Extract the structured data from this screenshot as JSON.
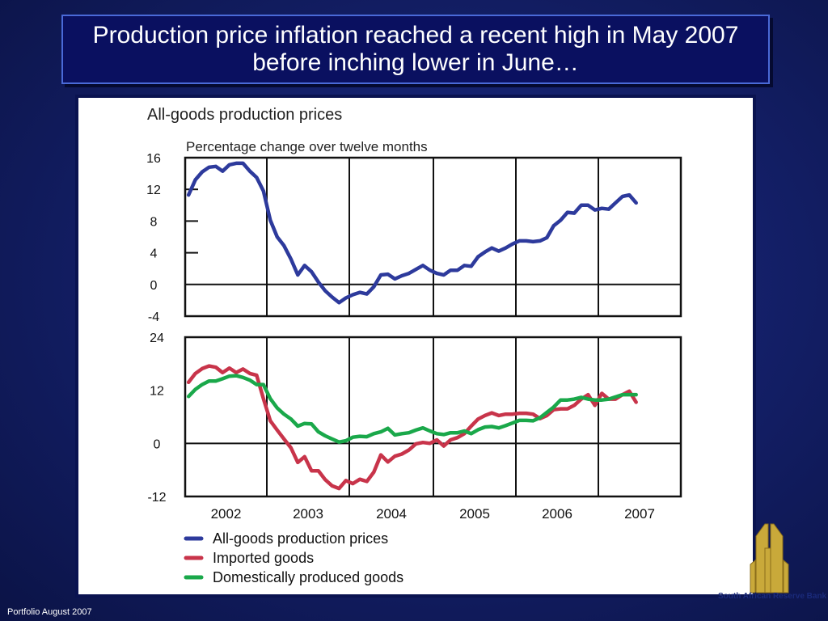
{
  "slide": {
    "title_line1": "Production price inflation reached a recent high in May 2007",
    "title_line2": "before inching lower in June…",
    "footer": "Portfolio August 2007",
    "bank_name": "South African Reserve Bank"
  },
  "chart_data": {
    "type": "line",
    "title": "All-goods production prices",
    "subtitle": "Percentage change over twelve months",
    "x_tick_labels": [
      "2002",
      "2003",
      "2004",
      "2005",
      "2006",
      "2007"
    ],
    "colors": {
      "all_goods": "#2d3a9c",
      "imported": "#c8344a",
      "domestic": "#1aa84a"
    },
    "top_panel": {
      "ylim": [
        -4,
        16
      ],
      "y_ticks": [
        "16",
        "12",
        "8",
        "4",
        "0",
        "-4"
      ],
      "series": [
        {
          "name": "All-goods production prices",
          "color": "#2d3a9c",
          "x": [
            "2002-01",
            "2002-02",
            "2002-03",
            "2002-04",
            "2002-05",
            "2002-06",
            "2002-07",
            "2002-08",
            "2002-09",
            "2002-10",
            "2002-11",
            "2002-12",
            "2003-01",
            "2003-02",
            "2003-03",
            "2003-04",
            "2003-05",
            "2003-06",
            "2003-07",
            "2003-08",
            "2003-09",
            "2003-10",
            "2003-11",
            "2003-12",
            "2004-01",
            "2004-02",
            "2004-03",
            "2004-04",
            "2004-05",
            "2004-06",
            "2004-07",
            "2004-08",
            "2004-09",
            "2004-10",
            "2004-11",
            "2004-12",
            "2005-01",
            "2005-02",
            "2005-03",
            "2005-04",
            "2005-05",
            "2005-06",
            "2005-07",
            "2005-08",
            "2005-09",
            "2005-10",
            "2005-11",
            "2005-12",
            "2006-01",
            "2006-02",
            "2006-03",
            "2006-04",
            "2006-05",
            "2006-06",
            "2006-07",
            "2006-08",
            "2006-09",
            "2006-10",
            "2006-11",
            "2006-12",
            "2007-01",
            "2007-02",
            "2007-03",
            "2007-04",
            "2007-05",
            "2007-06"
          ],
          "values": [
            11.3,
            13.2,
            14.2,
            14.8,
            14.9,
            14.3,
            15.1,
            15.3,
            15.3,
            14.3,
            13.5,
            11.8,
            8.1,
            6.0,
            4.9,
            3.2,
            1.2,
            2.4,
            1.6,
            0.3,
            -0.8,
            -1.6,
            -2.3,
            -1.7,
            -1.3,
            -1.0,
            -1.2,
            -0.3,
            1.2,
            1.3,
            0.7,
            1.1,
            1.4,
            1.9,
            2.4,
            1.8,
            1.4,
            1.2,
            1.8,
            1.8,
            2.4,
            2.3,
            3.5,
            4.1,
            4.6,
            4.2,
            4.6,
            5.1,
            5.5,
            5.5,
            5.4,
            5.5,
            5.9,
            7.4,
            8.1,
            9.1,
            9.0,
            10.0,
            10.0,
            9.4,
            9.6,
            9.5,
            10.3,
            11.1,
            11.3,
            10.3
          ]
        }
      ]
    },
    "bottom_panel": {
      "ylim": [
        -12,
        24
      ],
      "y_ticks": [
        "24",
        "12",
        "0",
        "-12"
      ],
      "series": [
        {
          "name": "Imported goods",
          "color": "#c8344a",
          "x": [
            "2002-01",
            "2002-02",
            "2002-03",
            "2002-04",
            "2002-05",
            "2002-06",
            "2002-07",
            "2002-08",
            "2002-09",
            "2002-10",
            "2002-11",
            "2002-12",
            "2003-01",
            "2003-02",
            "2003-03",
            "2003-04",
            "2003-05",
            "2003-06",
            "2003-07",
            "2003-08",
            "2003-09",
            "2003-10",
            "2003-11",
            "2003-12",
            "2004-01",
            "2004-02",
            "2004-03",
            "2004-04",
            "2004-05",
            "2004-06",
            "2004-07",
            "2004-08",
            "2004-09",
            "2004-10",
            "2004-11",
            "2004-12",
            "2005-01",
            "2005-02",
            "2005-03",
            "2005-04",
            "2005-05",
            "2005-06",
            "2005-07",
            "2005-08",
            "2005-09",
            "2005-10",
            "2005-11",
            "2005-12",
            "2006-01",
            "2006-02",
            "2006-03",
            "2006-04",
            "2006-05",
            "2006-06",
            "2006-07",
            "2006-08",
            "2006-09",
            "2006-10",
            "2006-11",
            "2006-12",
            "2007-01",
            "2007-02",
            "2007-03",
            "2007-04",
            "2007-05",
            "2007-06"
          ],
          "values": [
            13.8,
            15.8,
            16.9,
            17.5,
            17.2,
            16.0,
            17.0,
            16.0,
            16.8,
            15.8,
            15.4,
            10.1,
            5.1,
            3.0,
            1.0,
            -1.0,
            -4.3,
            -3.0,
            -6.2,
            -6.2,
            -8.2,
            -9.6,
            -10.2,
            -8.4,
            -9.1,
            -8.1,
            -8.6,
            -6.5,
            -2.6,
            -4.2,
            -2.9,
            -2.4,
            -1.5,
            -0.1,
            0.2,
            0.0,
            0.8,
            -0.6,
            0.8,
            1.3,
            2.2,
            3.9,
            5.5,
            6.3,
            6.9,
            6.3,
            6.6,
            6.6,
            6.8,
            6.8,
            6.6,
            5.6,
            6.3,
            7.6,
            7.8,
            7.8,
            8.6,
            10.0,
            11.0,
            8.6,
            11.3,
            10.0,
            10.0,
            11.0,
            11.8,
            9.3
          ]
        },
        {
          "name": "Domestically produced goods",
          "color": "#1aa84a",
          "x": [
            "2002-01",
            "2002-02",
            "2002-03",
            "2002-04",
            "2002-05",
            "2002-06",
            "2002-07",
            "2002-08",
            "2002-09",
            "2002-10",
            "2002-11",
            "2002-12",
            "2003-01",
            "2003-02",
            "2003-03",
            "2003-04",
            "2003-05",
            "2003-06",
            "2003-07",
            "2003-08",
            "2003-09",
            "2003-10",
            "2003-11",
            "2003-12",
            "2004-01",
            "2004-02",
            "2004-03",
            "2004-04",
            "2004-05",
            "2004-06",
            "2004-07",
            "2004-08",
            "2004-09",
            "2004-10",
            "2004-11",
            "2004-12",
            "2005-01",
            "2005-02",
            "2005-03",
            "2005-04",
            "2005-05",
            "2005-06",
            "2005-07",
            "2005-08",
            "2005-09",
            "2005-10",
            "2005-11",
            "2005-12",
            "2006-01",
            "2006-02",
            "2006-03",
            "2006-04",
            "2006-05",
            "2006-06",
            "2006-07",
            "2006-08",
            "2006-09",
            "2006-10",
            "2006-11",
            "2006-12",
            "2007-01",
            "2007-02",
            "2007-03",
            "2007-04",
            "2007-05",
            "2007-06"
          ],
          "values": [
            10.6,
            12.2,
            13.3,
            14.1,
            14.1,
            14.6,
            15.2,
            15.3,
            14.9,
            14.3,
            13.3,
            13.3,
            10.1,
            8.0,
            6.6,
            5.5,
            3.9,
            4.5,
            4.4,
            2.6,
            1.7,
            1.0,
            0.3,
            0.6,
            1.4,
            1.6,
            1.5,
            2.2,
            2.6,
            3.4,
            1.9,
            2.2,
            2.4,
            3.0,
            3.5,
            2.8,
            2.2,
            2.0,
            2.4,
            2.4,
            2.8,
            2.2,
            3.1,
            3.7,
            3.8,
            3.5,
            4.0,
            4.6,
            5.2,
            5.2,
            5.1,
            5.8,
            7.0,
            8.2,
            9.8,
            9.8,
            10.0,
            10.4,
            10.0,
            9.8,
            9.8,
            10.0,
            10.5,
            11.0,
            11.0,
            11.0
          ]
        }
      ]
    },
    "legend": {
      "position": "bottom",
      "entries": [
        {
          "label": "All-goods production prices",
          "color": "#2d3a9c"
        },
        {
          "label": "Imported goods",
          "color": "#c8344a"
        },
        {
          "label": "Domestically produced goods",
          "color": "#1aa84a"
        }
      ]
    }
  }
}
